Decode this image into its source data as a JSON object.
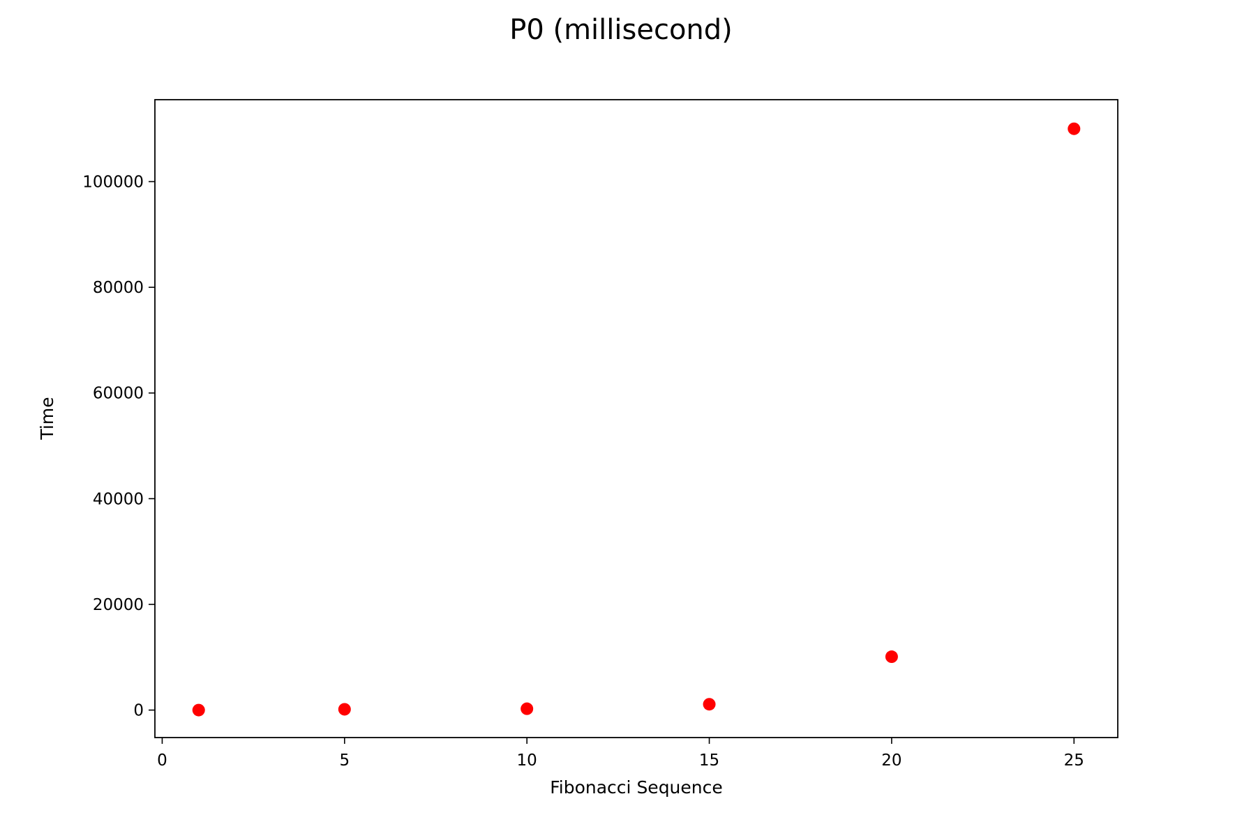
{
  "chart_data": {
    "type": "scatter",
    "title": "P0 (millisecond)",
    "xlabel": "Fibonacci Sequence",
    "ylabel": "Time",
    "xlim": [
      -0.2,
      26.2
    ],
    "ylim": [
      -5200,
      115500
    ],
    "xticks": [
      0,
      5,
      10,
      15,
      20,
      25
    ],
    "yticks": [
      0,
      20000,
      40000,
      60000,
      80000,
      100000
    ],
    "grid": false,
    "marker_color": "#ff0000",
    "series": [
      {
        "x": [
          1,
          5,
          10,
          15,
          20,
          25
        ],
        "y": [
          0,
          150,
          250,
          1100,
          10100,
          110000
        ]
      }
    ]
  }
}
